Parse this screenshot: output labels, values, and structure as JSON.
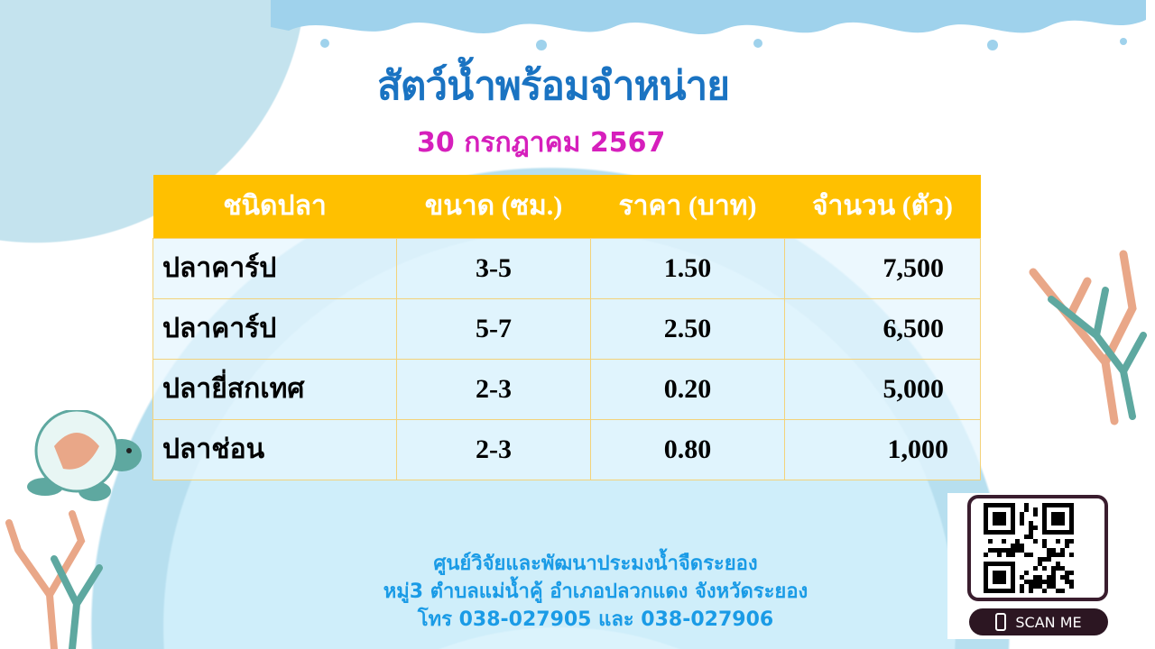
{
  "title": "สัตว์น้ำพร้อมจำหน่าย",
  "date": "30 กรกฎาคม 2567",
  "table": {
    "headers": [
      "ชนิดปลา",
      "ขนาด (ซม.)",
      "ราคา (บาท)",
      "จำนวน (ตัว)"
    ],
    "rows": [
      [
        "ปลาคาร์ป",
        "3-5",
        "1.50",
        "7,500"
      ],
      [
        "ปลาคาร์ป",
        "5-7",
        "2.50",
        "6,500"
      ],
      [
        "ปลายี่สกเทศ",
        "2-3",
        "0.20",
        "5,000"
      ],
      [
        "ปลาช่อน",
        "2-3",
        "0.80",
        "1,000"
      ]
    ]
  },
  "footer": {
    "line1": "ศูนย์วิจัยและพัฒนาประมงน้ำจืดระยอง",
    "line2": "หมู่3 ตำบลแม่น้ำคู้ อำเภอปลวกแดง จังหวัดระยอง",
    "line3": "โทร 038-027905 และ 038-027906"
  },
  "qr": {
    "label": "SCAN ME"
  },
  "colors": {
    "title": "#1a73c2",
    "date": "#d61fbc",
    "header": "#ffc000",
    "footer": "#1a9be6"
  }
}
